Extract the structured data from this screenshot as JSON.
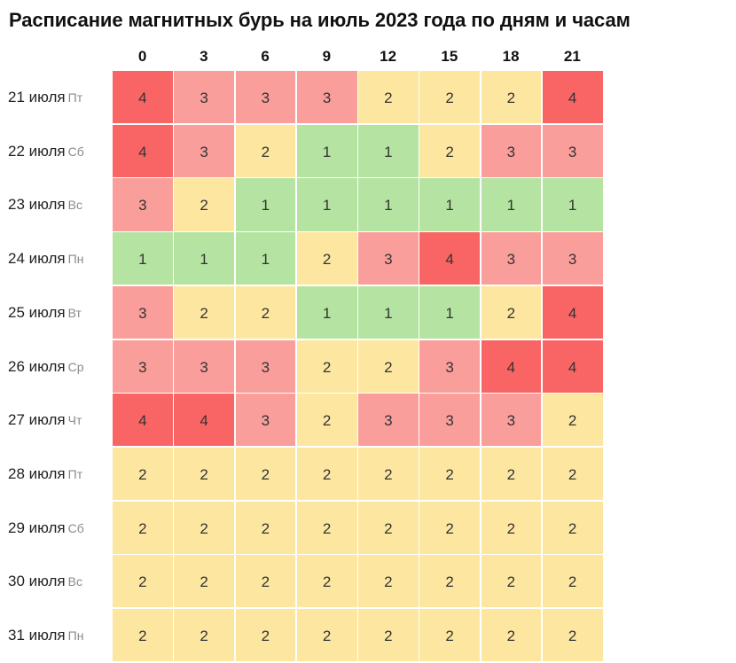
{
  "chart_data": {
    "type": "heatmap",
    "title": "Расписание магнитных бурь на июль 2023 года по дням и часам",
    "columns": [
      "0",
      "3",
      "6",
      "9",
      "12",
      "15",
      "18",
      "21"
    ],
    "rows": [
      {
        "date": "21 июля",
        "dow": "Пт",
        "values": [
          4,
          3,
          3,
          3,
          2,
          2,
          2,
          4
        ]
      },
      {
        "date": "22 июля",
        "dow": "Сб",
        "values": [
          4,
          3,
          2,
          1,
          1,
          2,
          3,
          3
        ]
      },
      {
        "date": "23 июля",
        "dow": "Вс",
        "values": [
          3,
          2,
          1,
          1,
          1,
          1,
          1,
          1
        ]
      },
      {
        "date": "24 июля",
        "dow": "Пн",
        "values": [
          1,
          1,
          1,
          2,
          3,
          4,
          3,
          3
        ]
      },
      {
        "date": "25 июля",
        "dow": "Вт",
        "values": [
          3,
          2,
          2,
          1,
          1,
          1,
          2,
          4
        ]
      },
      {
        "date": "26 июля",
        "dow": "Ср",
        "values": [
          3,
          3,
          3,
          2,
          2,
          3,
          4,
          4
        ]
      },
      {
        "date": "27 июля",
        "dow": "Чт",
        "values": [
          4,
          4,
          3,
          2,
          3,
          3,
          3,
          2
        ]
      },
      {
        "date": "28 июля",
        "dow": "Пт",
        "values": [
          2,
          2,
          2,
          2,
          2,
          2,
          2,
          2
        ]
      },
      {
        "date": "29 июля",
        "dow": "Сб",
        "values": [
          2,
          2,
          2,
          2,
          2,
          2,
          2,
          2
        ]
      },
      {
        "date": "30 июля",
        "dow": "Вс",
        "values": [
          2,
          2,
          2,
          2,
          2,
          2,
          2,
          2
        ]
      },
      {
        "date": "31 июля",
        "dow": "Пн",
        "values": [
          2,
          2,
          2,
          2,
          2,
          2,
          2,
          2
        ]
      }
    ],
    "color_scale": {
      "1": "#b5e3a1",
      "2": "#fde7a0",
      "3": "#fa9e9b",
      "4": "#f96565"
    }
  }
}
